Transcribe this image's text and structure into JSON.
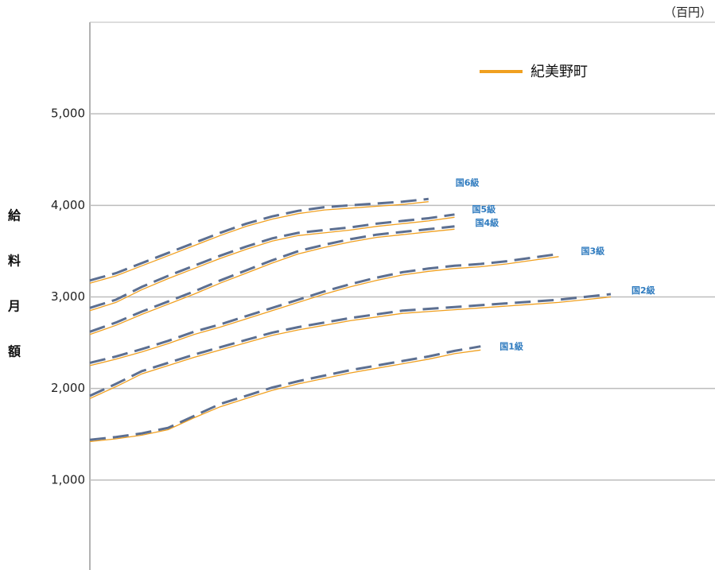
{
  "chart_data": {
    "type": "line",
    "unit_label": "（百円）",
    "y_label": [
      "給",
      "料",
      "月",
      "額"
    ],
    "categories": [
      null,
      null,
      null,
      null,
      null,
      null,
      null,
      null,
      null,
      null,
      null,
      null,
      null,
      null,
      null,
      null,
      null,
      null,
      null,
      null,
      null,
      null,
      null,
      null,
      null
    ],
    "ylim": [
      0,
      6000
    ],
    "yticks": [
      {
        "value": 1000,
        "label": "1,000"
      },
      {
        "value": 2000,
        "label": "2,000"
      },
      {
        "value": 3000,
        "label": "3,000"
      },
      {
        "value": 4000,
        "label": "4,000"
      },
      {
        "value": 5000,
        "label": "5,000"
      }
    ],
    "grid": true,
    "series": [
      {
        "name": "国1級",
        "color": "#5c6f91",
        "dashed": true,
        "values": [
          1440,
          1470,
          1510,
          1570,
          1700,
          1830,
          1920,
          2010,
          2080,
          2140,
          2200,
          2250,
          2300,
          2350,
          2410,
          2460,
          null,
          null,
          null,
          null,
          null,
          null,
          null,
          null,
          null
        ]
      },
      {
        "name": "国2級",
        "color": "#5c6f91",
        "dashed": true,
        "values": [
          1920,
          2050,
          2190,
          2280,
          2370,
          2450,
          2530,
          2610,
          2670,
          2720,
          2770,
          2810,
          2850,
          2870,
          2890,
          2910,
          2930,
          2950,
          2970,
          3000,
          3030,
          null,
          null,
          null,
          null
        ]
      },
      {
        "name": "国3級",
        "color": "#5c6f91",
        "dashed": true,
        "values": [
          2280,
          2350,
          2430,
          2520,
          2620,
          2700,
          2790,
          2880,
          2970,
          3060,
          3140,
          3210,
          3270,
          3310,
          3340,
          3360,
          3390,
          3430,
          3470,
          null,
          null,
          null,
          null,
          null,
          null
        ]
      },
      {
        "name": "国4級",
        "color": "#5c6f91",
        "dashed": true,
        "values": [
          2620,
          2720,
          2840,
          2950,
          3060,
          3180,
          3290,
          3400,
          3500,
          3570,
          3630,
          3680,
          3710,
          3740,
          3770,
          null,
          null,
          null,
          null,
          null,
          null,
          null,
          null,
          null,
          null
        ]
      },
      {
        "name": "国5級",
        "color": "#5c6f91",
        "dashed": true,
        "values": [
          2880,
          2970,
          3110,
          3230,
          3340,
          3450,
          3550,
          3640,
          3700,
          3730,
          3760,
          3800,
          3830,
          3860,
          3900,
          null,
          null,
          null,
          null,
          null,
          null,
          null,
          null,
          null,
          null
        ]
      },
      {
        "name": "国6級",
        "color": "#5c6f91",
        "dashed": true,
        "values": [
          3180,
          3260,
          3370,
          3480,
          3590,
          3700,
          3800,
          3880,
          3940,
          3980,
          4000,
          4020,
          4040,
          4070,
          null,
          null,
          null,
          null,
          null,
          null,
          null,
          null,
          null,
          null,
          null
        ]
      }
    ],
    "legend_series": {
      "name": "紀美野町",
      "color": "#f0a020",
      "lines": [
        [
          1420,
          1450,
          1490,
          1550,
          1680,
          1800,
          1890,
          1980,
          2050,
          2110,
          2170,
          2220,
          2270,
          2320,
          2380,
          2420,
          null,
          null,
          null,
          null,
          null,
          null,
          null,
          null,
          null
        ],
        [
          1890,
          2020,
          2160,
          2250,
          2340,
          2420,
          2500,
          2580,
          2640,
          2690,
          2740,
          2780,
          2820,
          2840,
          2860,
          2880,
          2900,
          2920,
          2940,
          2970,
          3000,
          null,
          null,
          null,
          null
        ],
        [
          2250,
          2320,
          2400,
          2490,
          2590,
          2670,
          2760,
          2850,
          2940,
          3030,
          3110,
          3180,
          3240,
          3280,
          3310,
          3330,
          3360,
          3400,
          3440,
          null,
          null,
          null,
          null,
          null,
          null
        ],
        [
          2590,
          2690,
          2810,
          2920,
          3030,
          3150,
          3260,
          3370,
          3470,
          3540,
          3600,
          3650,
          3680,
          3710,
          3740,
          null,
          null,
          null,
          null,
          null,
          null,
          null,
          null,
          null,
          null
        ],
        [
          2850,
          2940,
          3080,
          3200,
          3310,
          3420,
          3520,
          3610,
          3670,
          3700,
          3730,
          3770,
          3800,
          3830,
          3870,
          null,
          null,
          null,
          null,
          null,
          null,
          null,
          null,
          null,
          null
        ],
        [
          3150,
          3230,
          3340,
          3450,
          3560,
          3670,
          3770,
          3850,
          3910,
          3950,
          3970,
          3990,
          4010,
          4040,
          null,
          null,
          null,
          null,
          null,
          null,
          null,
          null,
          null,
          null,
          null
        ]
      ]
    }
  }
}
